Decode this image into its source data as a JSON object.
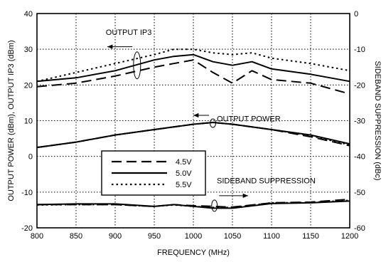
{
  "chart_data": {
    "type": "line",
    "xlabel": "FREQUENCY (MHz)",
    "ylabel_left": "OUTPUT POWER  (dBm), OUTPUT IP3 (dBm)",
    "ylabel_right": "SIDEBAND SUPPRESSION (dBc)",
    "xlim": [
      800,
      1200
    ],
    "ylim_left": [
      -20,
      40
    ],
    "ylim_right": [
      -60,
      0
    ],
    "x_ticks": [
      "800",
      "850",
      "900",
      "950",
      "1000",
      "1050",
      "1100",
      "1150",
      "1200"
    ],
    "y_ticks_left": [
      "40",
      "30",
      "20",
      "10",
      "0",
      "-10",
      "-20"
    ],
    "y_ticks_right": [
      "0",
      "-10",
      "-20",
      "-30",
      "-40",
      "-50",
      "-60"
    ],
    "grid": true,
    "legend": {
      "position": "center-left",
      "entries": [
        {
          "label": "4.5V",
          "style": "long-dash"
        },
        {
          "label": "5.0V",
          "style": "solid"
        },
        {
          "label": "5.5V",
          "style": "dotted"
        }
      ]
    },
    "annotations": {
      "ip3": "OUTPUT IP3",
      "power": "OUTPUT POWER",
      "sideband": "SIDEBAND SUPPRESSION"
    },
    "groups": [
      {
        "group": "ip3",
        "axis": "left",
        "series": [
          {
            "label": "4.5V",
            "style": "long-dash",
            "points": [
              [
                800,
                19.5
              ],
              [
                850,
                20.5
              ],
              [
                900,
                22.5
              ],
              [
                950,
                25.0
              ],
              [
                975,
                26.0
              ],
              [
                1000,
                27.0
              ],
              [
                1025,
                23.5
              ],
              [
                1050,
                20.5
              ],
              [
                1075,
                24.0
              ],
              [
                1100,
                21.5
              ],
              [
                1150,
                20.5
              ],
              [
                1200,
                17.5
              ]
            ]
          },
          {
            "label": "5.0V",
            "style": "solid",
            "points": [
              [
                800,
                21.0
              ],
              [
                850,
                22.0
              ],
              [
                900,
                24.0
              ],
              [
                950,
                27.0
              ],
              [
                975,
                28.0
              ],
              [
                1000,
                28.5
              ],
              [
                1025,
                26.5
              ],
              [
                1050,
                25.5
              ],
              [
                1075,
                26.5
              ],
              [
                1100,
                24.5
              ],
              [
                1150,
                23.0
              ],
              [
                1200,
                21.0
              ]
            ]
          },
          {
            "label": "5.5V",
            "style": "dotted",
            "points": [
              [
                800,
                21.0
              ],
              [
                850,
                23.5
              ],
              [
                900,
                26.0
              ],
              [
                950,
                28.5
              ],
              [
                975,
                30.0
              ],
              [
                1000,
                30.0
              ],
              [
                1025,
                29.0
              ],
              [
                1050,
                28.5
              ],
              [
                1075,
                29.0
              ],
              [
                1100,
                27.5
              ],
              [
                1150,
                26.0
              ],
              [
                1200,
                24.0
              ]
            ]
          }
        ]
      },
      {
        "group": "power",
        "axis": "left",
        "series": [
          {
            "label": "4.5V",
            "style": "long-dash",
            "points": [
              [
                800,
                2.5
              ],
              [
                850,
                4.0
              ],
              [
                900,
                6.0
              ],
              [
                950,
                7.5
              ],
              [
                1000,
                9.0
              ],
              [
                1025,
                9.5
              ],
              [
                1050,
                9.0
              ],
              [
                1100,
                7.5
              ],
              [
                1150,
                5.5
              ],
              [
                1200,
                3.0
              ]
            ]
          },
          {
            "label": "5.0V",
            "style": "solid",
            "points": [
              [
                800,
                2.5
              ],
              [
                850,
                4.0
              ],
              [
                900,
                6.0
              ],
              [
                950,
                7.5
              ],
              [
                1000,
                9.0
              ],
              [
                1025,
                9.5
              ],
              [
                1050,
                9.0
              ],
              [
                1100,
                7.5
              ],
              [
                1150,
                6.0
              ],
              [
                1200,
                3.5
              ]
            ]
          },
          {
            "label": "5.5V",
            "style": "dotted",
            "points": [
              [
                800,
                2.5
              ],
              [
                850,
                4.0
              ],
              [
                900,
                6.0
              ],
              [
                950,
                7.5
              ],
              [
                1000,
                9.0
              ],
              [
                1025,
                9.5
              ],
              [
                1050,
                9.0
              ],
              [
                1100,
                7.5
              ],
              [
                1150,
                5.8
              ],
              [
                1200,
                3.2
              ]
            ]
          }
        ]
      },
      {
        "group": "sideband",
        "axis": "right",
        "series": [
          {
            "label": "4.5V",
            "style": "long-dash",
            "points": [
              [
                800,
                -53.5
              ],
              [
                850,
                -53.5
              ],
              [
                900,
                -53.5
              ],
              [
                950,
                -54.0
              ],
              [
                975,
                -53.5
              ],
              [
                1000,
                -53.8
              ],
              [
                1025,
                -54.0
              ],
              [
                1050,
                -54.2
              ],
              [
                1100,
                -53.0
              ],
              [
                1150,
                -52.8
              ],
              [
                1200,
                -52.0
              ]
            ]
          },
          {
            "label": "5.0V",
            "style": "solid",
            "points": [
              [
                800,
                -53.5
              ],
              [
                850,
                -53.3
              ],
              [
                900,
                -53.3
              ],
              [
                950,
                -54.0
              ],
              [
                975,
                -53.5
              ],
              [
                1000,
                -54.0
              ],
              [
                1025,
                -54.5
              ],
              [
                1050,
                -54.5
              ],
              [
                1100,
                -53.2
              ],
              [
                1150,
                -53.0
              ],
              [
                1200,
                -52.5
              ]
            ]
          },
          {
            "label": "5.5V",
            "style": "dotted",
            "points": [
              [
                800,
                -53.6
              ],
              [
                850,
                -53.5
              ],
              [
                900,
                -53.5
              ],
              [
                950,
                -54.0
              ],
              [
                975,
                -53.6
              ],
              [
                1000,
                -54.0
              ],
              [
                1025,
                -54.3
              ],
              [
                1050,
                -54.3
              ],
              [
                1100,
                -53.0
              ],
              [
                1150,
                -52.9
              ],
              [
                1200,
                -52.3
              ]
            ]
          }
        ]
      }
    ]
  }
}
